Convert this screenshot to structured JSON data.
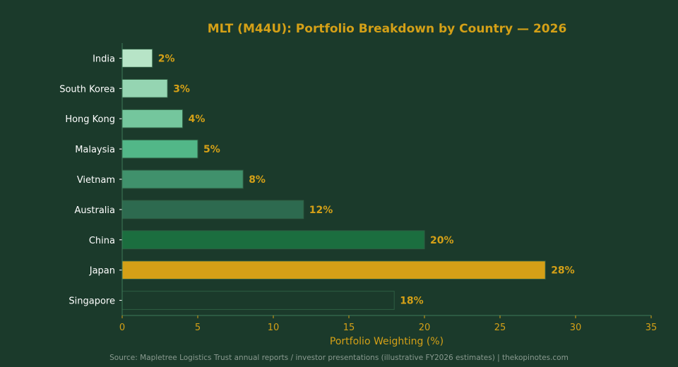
{
  "chart_data": {
    "type": "bar",
    "orientation": "horizontal",
    "title": "MLT (M44U): Portfolio Breakdown by Country — 2026",
    "xlabel": "Portfolio Weighting (%)",
    "ylabel": "",
    "xlim": [
      0,
      35
    ],
    "xticks": [
      0,
      5,
      10,
      15,
      20,
      25,
      30,
      35
    ],
    "categories": [
      "India",
      "South Korea",
      "Hong Kong",
      "Malaysia",
      "Vietnam",
      "Australia",
      "China",
      "Japan",
      "Singapore"
    ],
    "values": [
      2,
      3,
      4,
      5,
      8,
      12,
      20,
      28,
      18
    ],
    "value_labels": [
      "2%",
      "3%",
      "4%",
      "5%",
      "8%",
      "12%",
      "20%",
      "28%",
      "18%"
    ],
    "bar_colors": [
      "#b7e4c7",
      "#95d5b2",
      "#74c69d",
      "#52b788",
      "#40916c",
      "#2d6a4f",
      "#1b6e3f",
      "#d4a017",
      "#1b3a2b"
    ],
    "bar_edge_color": "#2e5e43",
    "grid": false,
    "legend": "none"
  },
  "source": "Source: Mapletree Logistics Trust annual reports / investor presentations (illustrative FY2026 estimates) | thekopinotes.com",
  "colors": {
    "background": "#1b3a2b",
    "accent": "#d4a017",
    "text": "#ffffff",
    "axis": "#3e7a58",
    "source_text": "#8a9a90"
  }
}
